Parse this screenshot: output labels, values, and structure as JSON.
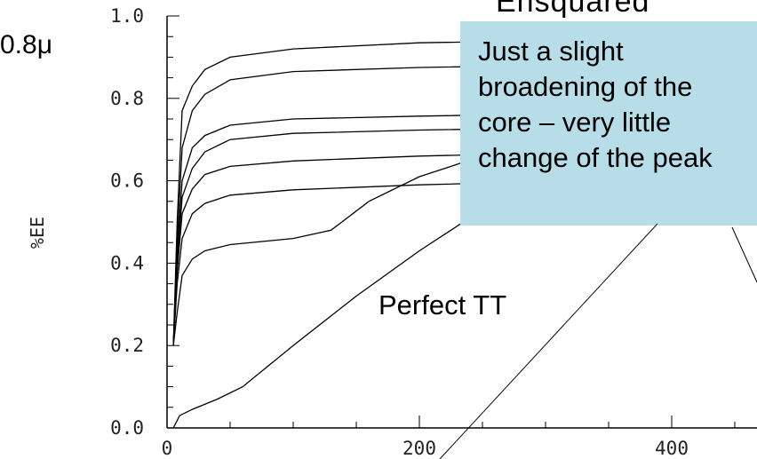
{
  "labels": {
    "wavelength": "0.8μ",
    "title_fragment": "Ensquared",
    "callout_lines": [
      "Just a slight",
      "broadening of the",
      "core – very little",
      "change of the peak"
    ],
    "perfect_tt": "Perfect TT"
  },
  "chart_data": {
    "type": "line",
    "ylabel": "%EE",
    "xlim": [
      0,
      500
    ],
    "ylim": [
      0.0,
      1.0
    ],
    "x_ticks": [
      0,
      200,
      400
    ],
    "y_ticks": [
      "0.0",
      "0.2",
      "0.4",
      "0.6",
      "0.8",
      "1.0"
    ],
    "grid": false,
    "series": [
      {
        "x": [
          5,
          8,
          12,
          20,
          30,
          50,
          100,
          200,
          300,
          400,
          500
        ],
        "y": [
          0.2,
          0.5,
          0.77,
          0.83,
          0.87,
          0.9,
          0.92,
          0.935,
          0.94,
          0.943,
          0.945
        ]
      },
      {
        "x": [
          5,
          8,
          12,
          20,
          30,
          50,
          100,
          200,
          300,
          400,
          500
        ],
        "y": [
          0.2,
          0.45,
          0.68,
          0.77,
          0.81,
          0.845,
          0.865,
          0.875,
          0.88,
          0.885,
          0.888
        ]
      },
      {
        "x": [
          5,
          8,
          12,
          20,
          30,
          50,
          100,
          200,
          300,
          400,
          500
        ],
        "y": [
          0.2,
          0.42,
          0.6,
          0.68,
          0.71,
          0.735,
          0.75,
          0.757,
          0.762,
          0.766,
          0.77
        ]
      },
      {
        "x": [
          5,
          8,
          12,
          20,
          30,
          50,
          100,
          200,
          300,
          400,
          500
        ],
        "y": [
          0.2,
          0.4,
          0.56,
          0.63,
          0.67,
          0.7,
          0.715,
          0.723,
          0.728,
          0.732,
          0.735
        ]
      },
      {
        "x": [
          5,
          8,
          12,
          20,
          30,
          50,
          100,
          200,
          300,
          400,
          500
        ],
        "y": [
          0.2,
          0.38,
          0.52,
          0.58,
          0.615,
          0.635,
          0.648,
          0.66,
          0.667,
          0.672,
          0.676
        ]
      },
      {
        "x": [
          5,
          8,
          12,
          20,
          30,
          50,
          100,
          200,
          300,
          400,
          500
        ],
        "y": [
          0.2,
          0.35,
          0.46,
          0.52,
          0.545,
          0.565,
          0.578,
          0.59,
          0.598,
          0.604,
          0.61
        ]
      },
      {
        "x": [
          5,
          8,
          12,
          20,
          30,
          50,
          100,
          130,
          160,
          200,
          250,
          300
        ],
        "y": [
          0.2,
          0.28,
          0.37,
          0.41,
          0.43,
          0.445,
          0.46,
          0.48,
          0.55,
          0.61,
          0.66,
          0.71
        ]
      },
      {
        "x": [
          5,
          10,
          20,
          40,
          60,
          80,
          100,
          150,
          200,
          250,
          300,
          350
        ],
        "y": [
          0.0,
          0.03,
          0.045,
          0.07,
          0.1,
          0.15,
          0.2,
          0.32,
          0.43,
          0.53,
          0.6,
          0.64
        ]
      }
    ]
  }
}
